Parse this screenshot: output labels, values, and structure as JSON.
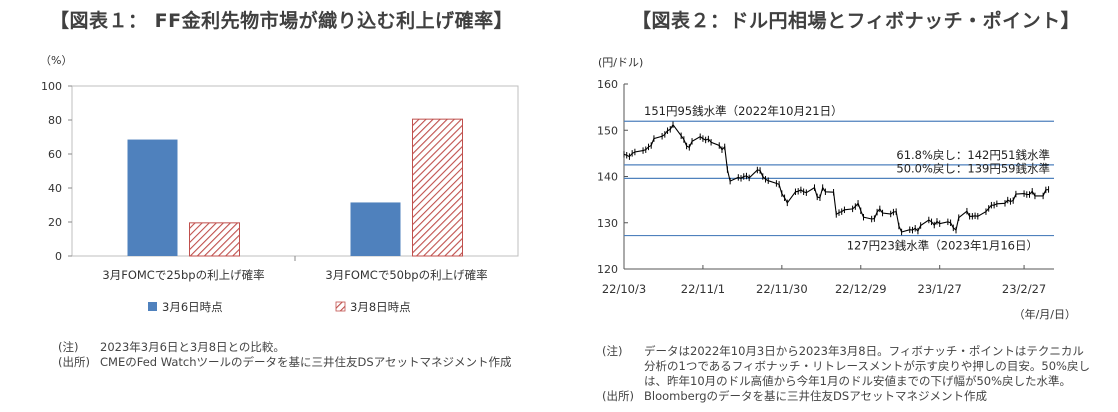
{
  "chart_data": [
    {
      "type": "bar",
      "title": "【図表１： FF金利先物市場が織り込む利上げ確率】",
      "unit_label": "（%）",
      "ylim": [
        0,
        100
      ],
      "yticks": [
        0,
        20,
        40,
        60,
        80,
        100
      ],
      "categories": [
        "3月FOMCで25bpの利上げ確率",
        "3月FOMCで50bpの利上げ確率"
      ],
      "series": [
        {
          "name": "3月6日時点",
          "values": [
            68.5,
            31.5
          ],
          "color": "#4f81bd",
          "pattern": "solid"
        },
        {
          "name": "3月8日時点",
          "values": [
            19.5,
            80.5
          ],
          "color": "#c0504d",
          "pattern": "hatch"
        }
      ],
      "grid": false,
      "legend_position": "bottom"
    },
    {
      "type": "line",
      "title": "【図表２：ドル円相場とフィボナッチ・ポイント】",
      "unit_label": "(円/ドル)",
      "xlabel_unit": "（年/月/日）",
      "ylim": [
        120,
        160
      ],
      "yticks": [
        120,
        130,
        140,
        150,
        160
      ],
      "xtick_labels": [
        "22/10/3",
        "22/11/1",
        "22/11/30",
        "22/12/29",
        "23/1/27",
        "23/2/27"
      ],
      "reference_lines": [
        {
          "value": 151.95,
          "label": "151円95銭水準（2022年10月21日）"
        },
        {
          "value": 142.51,
          "label": "61.8%戻し：142円51銭水準"
        },
        {
          "value": 139.59,
          "label": "50.0%戻し：139円59銭水準"
        },
        {
          "value": 127.23,
          "label": "127円23銭水準（2023年1月16日）"
        }
      ],
      "series": [
        {
          "name": "ドル円",
          "x": [
            "22/10/3",
            "22/10/4",
            "22/10/5",
            "22/10/6",
            "22/10/7",
            "22/10/10",
            "22/10/11",
            "22/10/12",
            "22/10/13",
            "22/10/14",
            "22/10/17",
            "22/10/18",
            "22/10/19",
            "22/10/20",
            "22/10/21",
            "22/10/24",
            "22/10/25",
            "22/10/26",
            "22/10/27",
            "22/10/28",
            "22/10/31",
            "22/11/1",
            "22/11/2",
            "22/11/3",
            "22/11/4",
            "22/11/7",
            "22/11/8",
            "22/11/9",
            "22/11/10",
            "22/11/11",
            "22/11/14",
            "22/11/15",
            "22/11/16",
            "22/11/17",
            "22/11/18",
            "22/11/21",
            "22/11/22",
            "22/11/23",
            "22/11/24",
            "22/11/25",
            "22/11/28",
            "22/11/29",
            "22/11/30",
            "22/12/1",
            "22/12/2",
            "22/12/5",
            "22/12/6",
            "22/12/7",
            "22/12/8",
            "22/12/9",
            "22/12/12",
            "22/12/13",
            "22/12/14",
            "22/12/15",
            "22/12/16",
            "22/12/19",
            "22/12/20",
            "22/12/21",
            "22/12/22",
            "22/12/23",
            "22/12/26",
            "22/12/27",
            "22/12/28",
            "22/12/29",
            "22/12/30",
            "23/1/2",
            "23/1/3",
            "23/1/4",
            "23/1/5",
            "23/1/6",
            "23/1/9",
            "23/1/10",
            "23/1/11",
            "23/1/12",
            "23/1/13",
            "23/1/16",
            "23/1/17",
            "23/1/18",
            "23/1/19",
            "23/1/20",
            "23/1/23",
            "23/1/24",
            "23/1/25",
            "23/1/26",
            "23/1/27",
            "23/1/30",
            "23/1/31",
            "23/2/1",
            "23/2/2",
            "23/2/3",
            "23/2/6",
            "23/2/7",
            "23/2/8",
            "23/2/9",
            "23/2/10",
            "23/2/13",
            "23/2/14",
            "23/2/15",
            "23/2/16",
            "23/2/17",
            "23/2/20",
            "23/2/21",
            "23/2/22",
            "23/2/23",
            "23/2/24",
            "23/2/27",
            "23/2/28",
            "23/3/1",
            "23/3/2",
            "23/3/3",
            "23/3/6",
            "23/3/7",
            "23/3/8"
          ],
          "y": [
            144.8,
            144.6,
            144.3,
            145.0,
            145.3,
            145.6,
            145.8,
            146.4,
            146.7,
            148.2,
            148.7,
            149.1,
            149.9,
            150.2,
            151.2,
            148.8,
            148.0,
            146.6,
            146.3,
            147.6,
            148.6,
            148.2,
            147.9,
            148.1,
            147.4,
            146.7,
            145.8,
            146.4,
            141.5,
            139.0,
            139.8,
            139.6,
            140.0,
            140.1,
            139.7,
            141.4,
            141.3,
            140.0,
            139.4,
            139.1,
            138.5,
            138.3,
            136.3,
            135.4,
            134.3,
            136.7,
            136.8,
            137.1,
            136.7,
            136.5,
            137.6,
            135.6,
            135.4,
            137.6,
            136.7,
            136.6,
            131.8,
            132.2,
            132.4,
            132.8,
            133.0,
            133.5,
            134.2,
            132.6,
            131.2,
            130.8,
            130.9,
            132.3,
            133.0,
            132.1,
            131.9,
            132.3,
            132.4,
            129.3,
            128.0,
            128.5,
            128.4,
            128.8,
            128.2,
            129.4,
            130.6,
            130.2,
            129.5,
            130.3,
            129.8,
            130.2,
            130.0,
            128.9,
            128.4,
            131.1,
            132.5,
            131.4,
            131.4,
            131.5,
            131.4,
            132.4,
            133.1,
            133.8,
            133.8,
            134.1,
            134.2,
            134.9,
            134.6,
            134.8,
            136.2,
            136.3,
            136.1,
            136.1,
            136.8,
            135.8,
            135.8,
            137.1,
            137.2
          ],
          "color": "#000000"
        }
      ],
      "grid": false
    }
  ],
  "notes1": [
    {
      "label": "(注)",
      "text": "2023年3月6日と3月8日との比較。"
    },
    {
      "label": "(出所)",
      "text": "CMEのFed Watchツールのデータを基に三井住友DSアセットマネジメント作成"
    }
  ],
  "notes2": [
    {
      "label": "(注)",
      "text": "データは2022年10月3日から2023年3月8日。フィボナッチ・ポイントはテクニカル分析の1つであるフィボナッチ・リトレースメントが示す戻りや押しの目安。50%戻しは、昨年10月のドル高値から今年1月のドル安値までの下げ幅が50%戻した水準。"
    },
    {
      "label": "(出所)",
      "text": "Bloombergのデータを基に三井住友DSアセットマネジメント作成"
    }
  ]
}
